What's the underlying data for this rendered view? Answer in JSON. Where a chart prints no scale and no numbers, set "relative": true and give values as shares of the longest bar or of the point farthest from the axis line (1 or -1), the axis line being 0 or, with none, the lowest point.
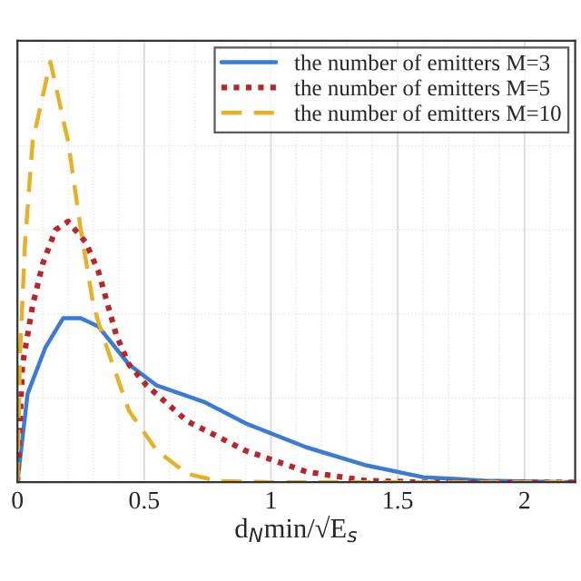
{
  "chart_data": {
    "type": "line",
    "xlabel": "d$_{N}$min/√E$_{s}$",
    "relative": true,
    "xlim": [
      0,
      2.2
    ],
    "xticks": [
      0,
      0.5,
      1,
      1.5,
      2
    ],
    "tick_labels": "x",
    "grid": true,
    "legend": "top right",
    "marker": "none",
    "series": [
      {
        "name": "the number of emitters M=3",
        "color": "#3a7bd5",
        "line_style": "solid",
        "x": [
          0,
          0.04,
          0.11,
          0.18,
          0.25,
          0.32,
          0.44,
          0.55,
          0.74,
          0.9,
          1.14,
          1.37,
          1.6,
          1.84,
          2.2
        ],
        "values": [
          0,
          0.21,
          0.32,
          0.39,
          0.39,
          0.37,
          0.28,
          0.23,
          0.19,
          0.14,
          0.083,
          0.041,
          0.012,
          0.004,
          0
        ]
      },
      {
        "name": "the number of emitters M=5",
        "color": "#b8262b",
        "line_style": "dotted",
        "x": [
          0,
          0.02,
          0.06,
          0.1,
          0.15,
          0.2,
          0.27,
          0.32,
          0.39,
          0.44,
          0.51,
          0.67,
          0.9,
          1.14,
          1.37,
          1.6,
          2.2
        ],
        "values": [
          0,
          0.28,
          0.42,
          0.52,
          0.6,
          0.62,
          0.57,
          0.5,
          0.35,
          0.28,
          0.23,
          0.145,
          0.075,
          0.025,
          0.004,
          0,
          0
        ]
      },
      {
        "name": "the number of emitters M=10",
        "color": "#e8b024",
        "line_style": "dashed",
        "x": [
          0,
          0.01,
          0.03,
          0.06,
          0.13,
          0.2,
          0.25,
          0.3,
          0.32,
          0.37,
          0.44,
          0.55,
          0.67,
          0.79,
          1.0,
          2.2
        ],
        "values": [
          0,
          0.3,
          0.57,
          0.81,
          1.0,
          0.81,
          0.6,
          0.42,
          0.38,
          0.29,
          0.17,
          0.075,
          0.02,
          0.003,
          0,
          0
        ]
      }
    ]
  }
}
